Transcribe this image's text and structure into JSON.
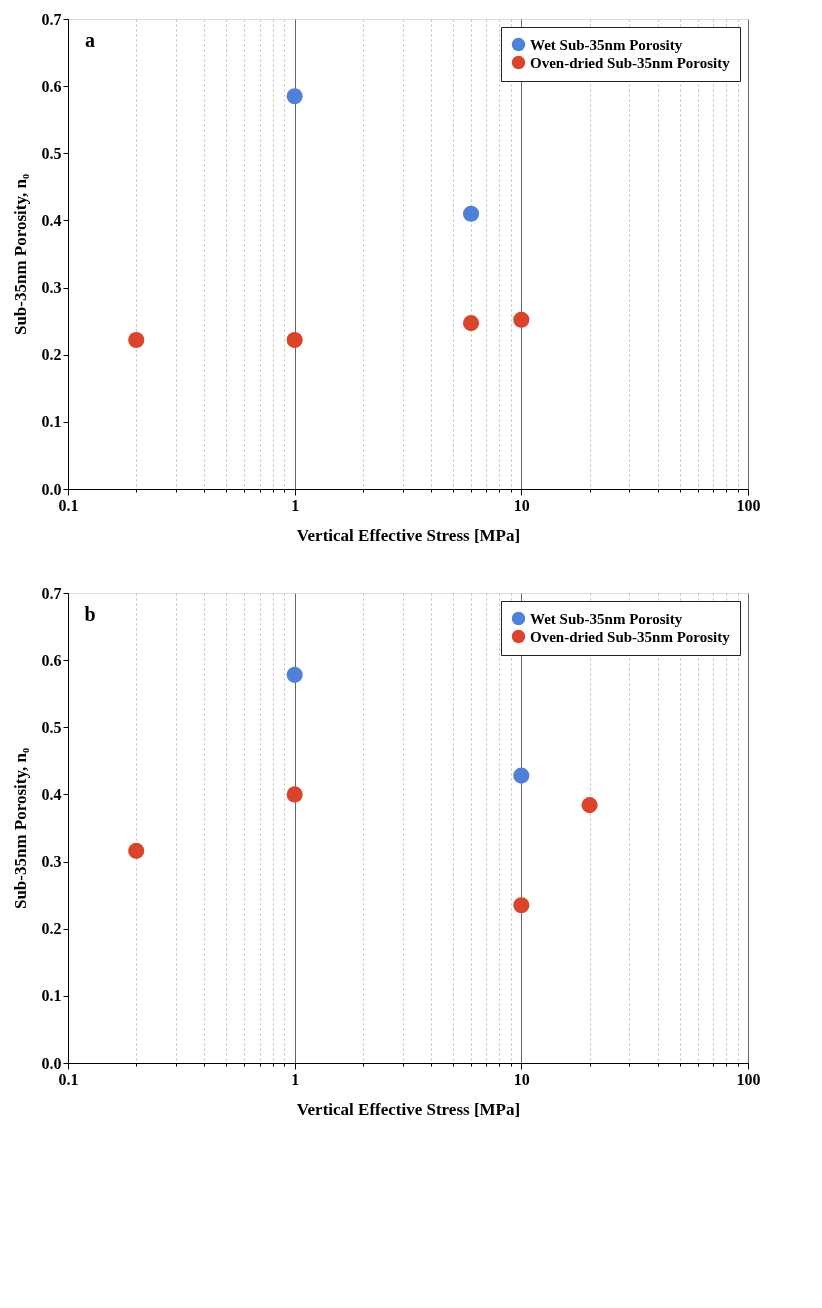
{
  "chart_data": [
    {
      "type": "scatter",
      "xlabel": "Vertical Effective Stress [MPa]",
      "ylabel": "Sub-35nm Porosity, n₀",
      "annotations": [
        "a"
      ],
      "log": "x",
      "grid": "x",
      "legend": "top right",
      "marker": "circle",
      "xlim": [
        0.1,
        100
      ],
      "ylim": [
        0,
        0.7
      ],
      "xticks": [
        0.1,
        {
          "value": 0.2,
          "label": null
        },
        {
          "value": 0.3,
          "label": null
        },
        {
          "value": 0.4,
          "label": null
        },
        {
          "value": 0.5,
          "label": null
        },
        {
          "value": 0.6,
          "label": null
        },
        {
          "value": 0.7,
          "label": null
        },
        {
          "value": 0.8,
          "label": null
        },
        {
          "value": 0.9,
          "label": null
        },
        1,
        {
          "value": 2,
          "label": null
        },
        {
          "value": 3,
          "label": null
        },
        {
          "value": 4,
          "label": null
        },
        {
          "value": 5,
          "label": null
        },
        {
          "value": 6,
          "label": null
        },
        {
          "value": 7,
          "label": null
        },
        {
          "value": 8,
          "label": null
        },
        {
          "value": 9,
          "label": null
        },
        10,
        {
          "value": 20,
          "label": null
        },
        {
          "value": 30,
          "label": null
        },
        {
          "value": 40,
          "label": null
        },
        {
          "value": 50,
          "label": null
        },
        {
          "value": 60,
          "label": null
        },
        {
          "value": 70,
          "label": null
        },
        {
          "value": 80,
          "label": null
        },
        {
          "value": 90,
          "label": null
        },
        100
      ],
      "yticks": [
        {
          "value": 0,
          "label": "0.0"
        },
        0.1,
        0.2,
        0.3,
        0.4,
        0.5,
        0.6,
        0.7
      ],
      "series": [
        {
          "name": "Wet Sub-35nm Porosity",
          "color": "#4f81d9",
          "x": [
            1,
            6
          ],
          "values": [
            0.585,
            0.41
          ]
        },
        {
          "name": "Oven-dried Sub-35nm Porosity",
          "color": "#d9442b",
          "x": [
            0.2,
            1,
            6,
            10
          ],
          "values": [
            0.222,
            0.222,
            0.247,
            0.252
          ]
        }
      ]
    },
    {
      "type": "scatter",
      "xlabel": "Vertical Effective Stress [MPa]",
      "ylabel": "Sub-35nm Porosity, n₀",
      "annotations": [
        "b"
      ],
      "log": "x",
      "grid": "x",
      "legend": "top right",
      "marker": "circle",
      "xlim": [
        0.1,
        100
      ],
      "ylim": [
        0,
        0.7
      ],
      "xticks": [
        0.1,
        {
          "value": 0.2,
          "label": null
        },
        {
          "value": 0.3,
          "label": null
        },
        {
          "value": 0.4,
          "label": null
        },
        {
          "value": 0.5,
          "label": null
        },
        {
          "value": 0.6,
          "label": null
        },
        {
          "value": 0.7,
          "label": null
        },
        {
          "value": 0.8,
          "label": null
        },
        {
          "value": 0.9,
          "label": null
        },
        1,
        {
          "value": 2,
          "label": null
        },
        {
          "value": 3,
          "label": null
        },
        {
          "value": 4,
          "label": null
        },
        {
          "value": 5,
          "label": null
        },
        {
          "value": 6,
          "label": null
        },
        {
          "value": 7,
          "label": null
        },
        {
          "value": 8,
          "label": null
        },
        {
          "value": 9,
          "label": null
        },
        10,
        {
          "value": 20,
          "label": null
        },
        {
          "value": 30,
          "label": null
        },
        {
          "value": 40,
          "label": null
        },
        {
          "value": 50,
          "label": null
        },
        {
          "value": 60,
          "label": null
        },
        {
          "value": 70,
          "label": null
        },
        {
          "value": 80,
          "label": null
        },
        {
          "value": 90,
          "label": null
        },
        100
      ],
      "yticks": [
        {
          "value": 0,
          "label": "0.0"
        },
        0.1,
        0.2,
        0.3,
        0.4,
        0.5,
        0.6,
        0.7
      ],
      "series": [
        {
          "name": "Wet Sub-35nm Porosity",
          "color": "#4f81d9",
          "x": [
            1,
            10
          ],
          "values": [
            0.578,
            0.428
          ]
        },
        {
          "name": "Oven-dried Sub-35nm Porosity",
          "color": "#d9442b",
          "x": [
            0.2,
            1,
            10,
            20
          ],
          "values": [
            0.316,
            0.4,
            0.235,
            0.384
          ]
        }
      ]
    }
  ]
}
